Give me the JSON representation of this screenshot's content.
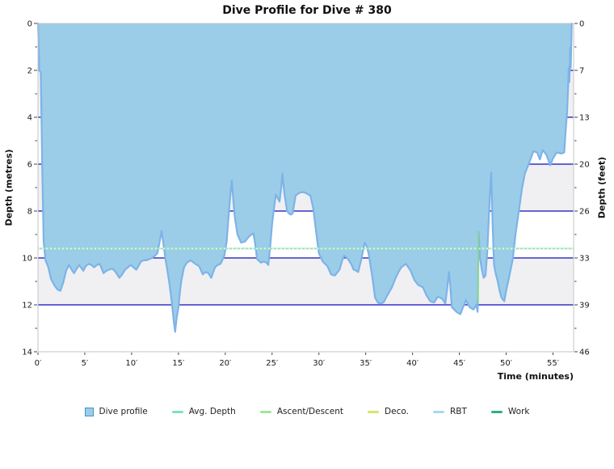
{
  "title": "Dive Profile for Dive # 380",
  "axes": {
    "x": {
      "title": "Time (minutes)",
      "ticks": [
        {
          "v": 0,
          "label": "0′"
        },
        {
          "v": 5,
          "label": "5′"
        },
        {
          "v": 10,
          "label": "10′"
        },
        {
          "v": 15,
          "label": "15′"
        },
        {
          "v": 20,
          "label": "20′"
        },
        {
          "v": 25,
          "label": "25′"
        },
        {
          "v": 30,
          "label": "30′"
        },
        {
          "v": 35,
          "label": "35′"
        },
        {
          "v": 40,
          "label": "40′"
        },
        {
          "v": 45,
          "label": "45′"
        },
        {
          "v": 50,
          "label": "50′"
        },
        {
          "v": 55,
          "label": "55′"
        }
      ]
    },
    "y_left": {
      "title": "Depth (metres)",
      "minor_step_m": 1,
      "ticks": [
        {
          "v": 0,
          "label": "0"
        },
        {
          "v": 2,
          "label": "2"
        },
        {
          "v": 4,
          "label": "4"
        },
        {
          "v": 6,
          "label": "6"
        },
        {
          "v": 8,
          "label": "8"
        },
        {
          "v": 10,
          "label": "10"
        },
        {
          "v": 12,
          "label": "12"
        },
        {
          "v": 14,
          "label": "14"
        }
      ]
    },
    "y_right": {
      "title": "Depth (feet)",
      "minor_step_m": 1,
      "ticks": [
        {
          "v": 0,
          "label": "0"
        },
        {
          "v": 2,
          "label": "7"
        },
        {
          "v": 4,
          "label": "13"
        },
        {
          "v": 6,
          "label": "20"
        },
        {
          "v": 8,
          "label": "26"
        },
        {
          "v": 10,
          "label": "33"
        },
        {
          "v": 12,
          "label": "39"
        },
        {
          "v": 14,
          "label": "46"
        }
      ]
    }
  },
  "legend": [
    {
      "label": "Dive profile",
      "marker": "square",
      "color": "#9bcde8",
      "border": "#4a90c4"
    },
    {
      "label": "Avg. Depth",
      "marker": "line",
      "color": "#7fdfc0"
    },
    {
      "label": "Ascent/Descent",
      "marker": "line",
      "color": "#9ae89a"
    },
    {
      "label": "Deco.",
      "marker": "line",
      "color": "#d9e26e"
    },
    {
      "label": "RBT",
      "marker": "line",
      "color": "#a5d9f0"
    },
    {
      "label": "Work",
      "marker": "line",
      "color": "#2eae8c"
    }
  ],
  "chart_data": {
    "type": "area",
    "title": "Dive Profile for Dive # 380",
    "xlabel": "Time (minutes)",
    "ylabel_left": "Depth (metres)",
    "ylabel_right": "Depth (feet)",
    "xlim": [
      0,
      57.2
    ],
    "ylim": [
      0,
      14
    ],
    "y_inverted": true,
    "grid": true,
    "legend_position": "bottom",
    "avg_depth_m": 9.6,
    "ascent_event": {
      "time_min": 47.0,
      "from_m": 11.9,
      "to_m": 8.9
    },
    "grid_lines_m": [
      2,
      4,
      6,
      8,
      10,
      12
    ],
    "depth_bands_gray": [
      [
        2,
        4
      ],
      [
        6,
        8
      ],
      [
        10,
        12
      ]
    ],
    "colors": {
      "area_fill": "#9bcde8",
      "area_stroke": "#7db3e8",
      "grid_major": "#0d0dbb",
      "band_gray": "#f0f0f3",
      "avg_depth_line": "#9be0b8",
      "avg_depth_dash": "#d7f5e6",
      "ascent_line": "#8cd890",
      "plot_border": "#c6c6c6",
      "tick": "#444444",
      "tick_label": "#1a1a1a"
    },
    "series": [
      {
        "name": "Dive profile",
        "points": [
          [
            0,
            0
          ],
          [
            0.15,
            2
          ],
          [
            0.3,
            2.1
          ],
          [
            0.45,
            6
          ],
          [
            0.6,
            9.3
          ],
          [
            0.8,
            10.1
          ],
          [
            1.1,
            10.4
          ],
          [
            1.4,
            10.9
          ],
          [
            1.8,
            11.2
          ],
          [
            2.1,
            11.35
          ],
          [
            2.4,
            11.4
          ],
          [
            2.7,
            11.05
          ],
          [
            3,
            10.55
          ],
          [
            3.3,
            10.3
          ],
          [
            3.6,
            10.5
          ],
          [
            3.85,
            10.65
          ],
          [
            4.15,
            10.45
          ],
          [
            4.4,
            10.3
          ],
          [
            4.85,
            10.55
          ],
          [
            5.1,
            10.35
          ],
          [
            5.4,
            10.25
          ],
          [
            5.7,
            10.3
          ],
          [
            6,
            10.4
          ],
          [
            6.3,
            10.3
          ],
          [
            6.6,
            10.25
          ],
          [
            7,
            10.65
          ],
          [
            7.3,
            10.55
          ],
          [
            7.6,
            10.5
          ],
          [
            7.9,
            10.45
          ],
          [
            8.2,
            10.55
          ],
          [
            8.7,
            10.85
          ],
          [
            9,
            10.7
          ],
          [
            9.3,
            10.5
          ],
          [
            9.6,
            10.4
          ],
          [
            9.9,
            10.3
          ],
          [
            10.2,
            10.4
          ],
          [
            10.5,
            10.5
          ],
          [
            10.8,
            10.3
          ],
          [
            11,
            10.15
          ],
          [
            11.3,
            10.1
          ],
          [
            11.6,
            10.1
          ],
          [
            11.9,
            10.05
          ],
          [
            12.2,
            10
          ],
          [
            12.5,
            9.9
          ],
          [
            12.75,
            9.8
          ],
          [
            13,
            9.3
          ],
          [
            13.2,
            8.85
          ],
          [
            13.4,
            9.4
          ],
          [
            13.6,
            10
          ],
          [
            13.8,
            10.5
          ],
          [
            14,
            11
          ],
          [
            14.2,
            11.6
          ],
          [
            14.35,
            12.1
          ],
          [
            14.5,
            12.7
          ],
          [
            14.65,
            13.15
          ],
          [
            14.8,
            12.6
          ],
          [
            15,
            12.1
          ],
          [
            15.15,
            11.5
          ],
          [
            15.3,
            11
          ],
          [
            15.6,
            10.4
          ],
          [
            15.9,
            10.2
          ],
          [
            16.3,
            10.1
          ],
          [
            16.8,
            10.25
          ],
          [
            17.2,
            10.35
          ],
          [
            17.6,
            10.7
          ],
          [
            17.9,
            10.6
          ],
          [
            18.2,
            10.65
          ],
          [
            18.5,
            10.85
          ],
          [
            18.9,
            10.4
          ],
          [
            19.2,
            10.3
          ],
          [
            19.5,
            10.25
          ],
          [
            19.9,
            9.9
          ],
          [
            20.15,
            9.3
          ],
          [
            20.3,
            8.5
          ],
          [
            20.5,
            7.5
          ],
          [
            20.7,
            6.7
          ],
          [
            20.85,
            7.5
          ],
          [
            21,
            8.2
          ],
          [
            21.3,
            9
          ],
          [
            21.7,
            9.35
          ],
          [
            22.1,
            9.3
          ],
          [
            22.5,
            9.1
          ],
          [
            22.8,
            9
          ],
          [
            23,
            8.95
          ],
          [
            23.2,
            9.4
          ],
          [
            23.4,
            10.05
          ],
          [
            23.8,
            10.2
          ],
          [
            24.1,
            10.15
          ],
          [
            24.4,
            10.2
          ],
          [
            24.6,
            10.3
          ],
          [
            24.8,
            9.5
          ],
          [
            25,
            8.55
          ],
          [
            25.2,
            7.9
          ],
          [
            25.4,
            7.3
          ],
          [
            25.6,
            7.45
          ],
          [
            25.8,
            7.6
          ],
          [
            26,
            6.9
          ],
          [
            26.1,
            6.4
          ],
          [
            26.3,
            7.2
          ],
          [
            26.6,
            8
          ],
          [
            26.8,
            8.1
          ],
          [
            27,
            8.15
          ],
          [
            27.2,
            8.1
          ],
          [
            27.5,
            7.35
          ],
          [
            27.8,
            7.25
          ],
          [
            28.1,
            7.2
          ],
          [
            28.4,
            7.2
          ],
          [
            28.7,
            7.25
          ],
          [
            29.1,
            7.35
          ],
          [
            29.4,
            7.9
          ],
          [
            29.6,
            8.55
          ],
          [
            29.8,
            9.2
          ],
          [
            30,
            9.8
          ],
          [
            30.4,
            10.15
          ],
          [
            30.9,
            10.35
          ],
          [
            31.3,
            10.7
          ],
          [
            31.7,
            10.75
          ],
          [
            32,
            10.6
          ],
          [
            32.2,
            10.5
          ],
          [
            32.5,
            10.1
          ],
          [
            32.7,
            9.9
          ],
          [
            33,
            10
          ],
          [
            33.2,
            10.1
          ],
          [
            33.5,
            10.3
          ],
          [
            33.7,
            10.5
          ],
          [
            34,
            10.55
          ],
          [
            34.2,
            10.6
          ],
          [
            34.5,
            10.1
          ],
          [
            34.9,
            9.35
          ],
          [
            35.1,
            9.5
          ],
          [
            35.3,
            9.8
          ],
          [
            35.5,
            10.3
          ],
          [
            35.7,
            10.8
          ],
          [
            36,
            11.7
          ],
          [
            36.3,
            11.9
          ],
          [
            36.5,
            11.95
          ],
          [
            36.9,
            11.9
          ],
          [
            37.3,
            11.6
          ],
          [
            37.8,
            11.25
          ],
          [
            38.2,
            10.85
          ],
          [
            38.5,
            10.6
          ],
          [
            38.8,
            10.4
          ],
          [
            39.3,
            10.25
          ],
          [
            39.8,
            10.55
          ],
          [
            40.2,
            10.95
          ],
          [
            40.6,
            11.15
          ],
          [
            41.1,
            11.25
          ],
          [
            41.5,
            11.6
          ],
          [
            41.9,
            11.85
          ],
          [
            42.3,
            11.9
          ],
          [
            42.7,
            11.65
          ],
          [
            43,
            11.7
          ],
          [
            43.2,
            11.75
          ],
          [
            43.5,
            11.95
          ],
          [
            43.7,
            11.3
          ],
          [
            43.9,
            10.6
          ],
          [
            44.05,
            11.3
          ],
          [
            44.2,
            12.1
          ],
          [
            44.45,
            12.2
          ],
          [
            44.7,
            12.3
          ],
          [
            45.1,
            12.4
          ],
          [
            45.4,
            12.1
          ],
          [
            45.7,
            11.8
          ],
          [
            45.9,
            11.95
          ],
          [
            46.1,
            12.1
          ],
          [
            46.5,
            12.2
          ],
          [
            46.8,
            12
          ],
          [
            46.95,
            12.3
          ],
          [
            47.05,
            8.9
          ],
          [
            47.2,
            10
          ],
          [
            47.4,
            10.5
          ],
          [
            47.6,
            10.85
          ],
          [
            47.8,
            10.75
          ],
          [
            48,
            9.6
          ],
          [
            48.1,
            8.7
          ],
          [
            48.25,
            7.4
          ],
          [
            48.4,
            6.35
          ],
          [
            48.55,
            8.5
          ],
          [
            48.7,
            10.3
          ],
          [
            48.9,
            10.7
          ],
          [
            49.1,
            11
          ],
          [
            49.3,
            11.4
          ],
          [
            49.5,
            11.7
          ],
          [
            49.8,
            11.85
          ],
          [
            50,
            11.4
          ],
          [
            50.3,
            10.85
          ],
          [
            50.7,
            10.05
          ],
          [
            51,
            9
          ],
          [
            51.3,
            8.15
          ],
          [
            51.7,
            7
          ],
          [
            52,
            6.4
          ],
          [
            52.5,
            5.9
          ],
          [
            52.9,
            5.45
          ],
          [
            53.3,
            5.5
          ],
          [
            53.6,
            5.8
          ],
          [
            53.9,
            5.4
          ],
          [
            54.3,
            5.6
          ],
          [
            54.7,
            6.05
          ],
          [
            55,
            5.75
          ],
          [
            55.4,
            5.5
          ],
          [
            55.9,
            5.55
          ],
          [
            56.2,
            5.5
          ],
          [
            56.35,
            4.6
          ],
          [
            56.5,
            3.8
          ],
          [
            56.6,
            2.9
          ],
          [
            56.68,
            1.9
          ],
          [
            56.75,
            2.5
          ],
          [
            56.85,
            1
          ],
          [
            56.9,
            1.9
          ],
          [
            57,
            0
          ]
        ]
      }
    ]
  }
}
